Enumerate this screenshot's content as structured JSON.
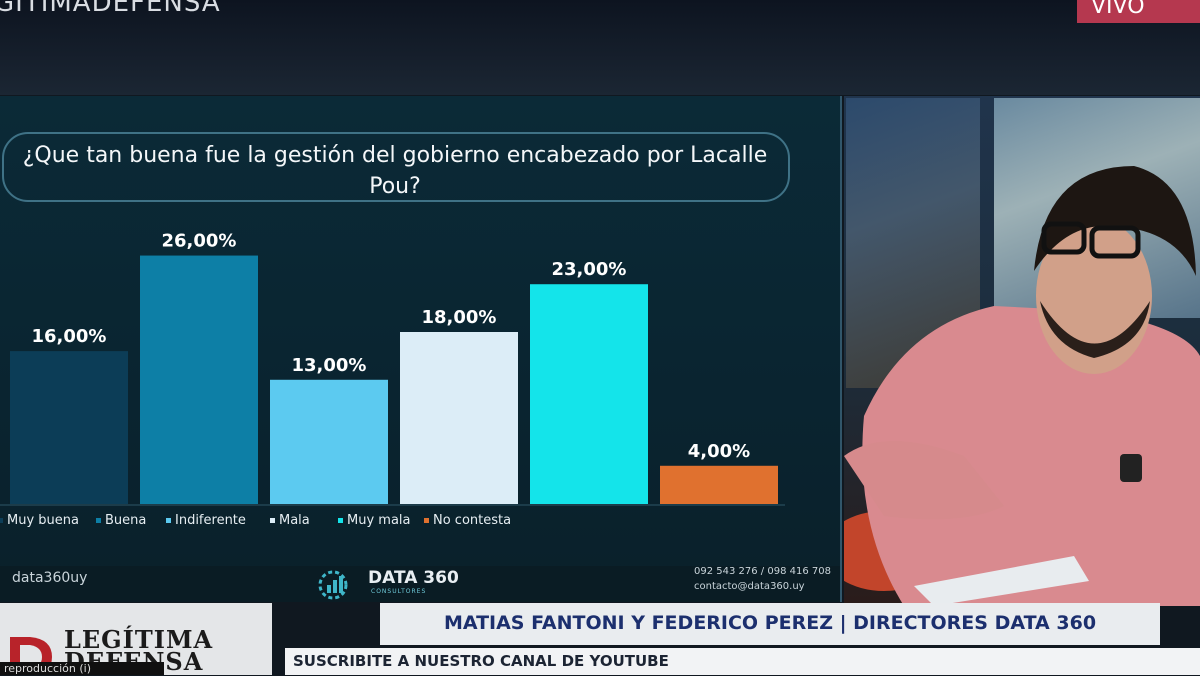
{
  "header": {
    "channel_handle": "GITIMADEFENSA",
    "live_label": "VIVO"
  },
  "chart_data": {
    "type": "bar",
    "title": "¿Que tan buena fue la gestión del gobierno encabezado por Lacalle Pou?",
    "categories": [
      "Muy buena",
      "Buena",
      "Indiferente",
      "Mala",
      "Muy mala",
      "No contesta"
    ],
    "values": [
      16,
      26,
      13,
      18,
      23,
      4
    ],
    "value_labels": [
      "16,00%",
      "26,00%",
      "13,00%",
      "18,00%",
      "23,00%",
      "4,00%"
    ],
    "colors": [
      "#0c3d57",
      "#0d7fa6",
      "#5ccaf0",
      "#dcedf7",
      "#14e4ea",
      "#e0712f"
    ],
    "ylim": [
      0,
      27
    ],
    "legend": "bottom",
    "grid": false,
    "xlabel": "",
    "ylabel": ""
  },
  "chart_footer": {
    "social_handle": "data360uy",
    "brand_name": "DATA 360",
    "brand_sub": "CONSULTORES",
    "phone": "092 543 276 / 098 416 708",
    "email": "contacto@data360.uy"
  },
  "lower_third": {
    "names": "MATIAS FANTONI Y FEDERICO PEREZ | DIRECTORES DATA 360",
    "logo_line1": "LEGÍTIMA",
    "logo_line2": "DEFENSA",
    "ticker": "SUSCRIBITE A NUESTRO CANAL DE YOUTUBE",
    "caption": "reproducción (i)"
  }
}
